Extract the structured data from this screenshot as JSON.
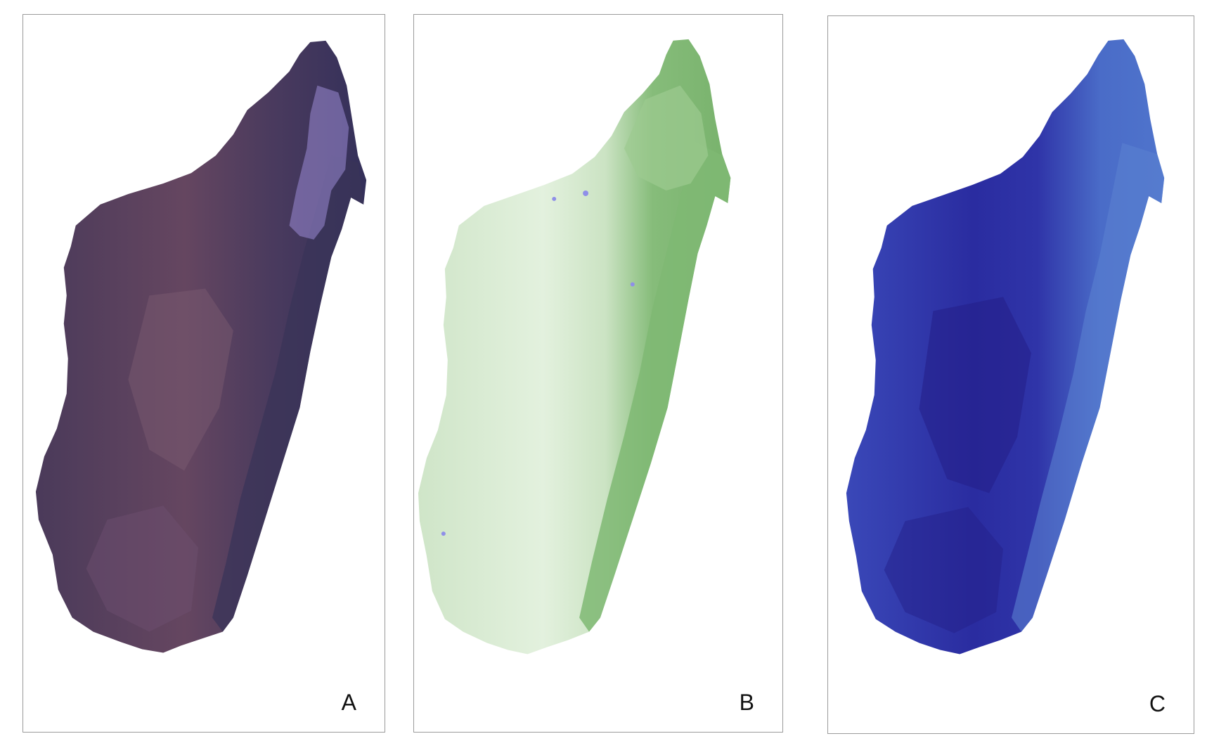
{
  "panels": [
    {
      "label": "A",
      "palette": {
        "base": "#4d3a5c",
        "west": "#5a3f5a",
        "center": "#6b4a63",
        "east": "#3a3458",
        "highlight": "#9a8ad4",
        "dark": "#2e2846"
      }
    },
    {
      "label": "B",
      "palette": {
        "base": "#cfe6c8",
        "light": "#e9f4e5",
        "center": "#dcedd6",
        "east": "#7fb873",
        "north": "#9ccb90",
        "water": "#8f8fe8"
      }
    },
    {
      "label": "C",
      "palette": {
        "base": "#3030a8",
        "west": "#3a48b8",
        "center": "#2a2ca0",
        "east": "#4a6cc8",
        "dark": "#24208a",
        "light": "#5a80d0"
      }
    }
  ]
}
